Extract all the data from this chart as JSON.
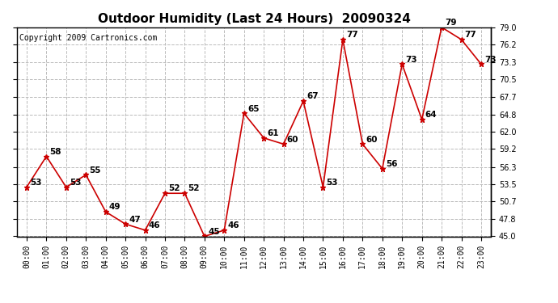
{
  "title": "Outdoor Humidity (Last 24 Hours)  20090324",
  "copyright": "Copyright 2009 Cartronics.com",
  "hours": [
    "00:00",
    "01:00",
    "02:00",
    "03:00",
    "04:00",
    "05:00",
    "06:00",
    "07:00",
    "08:00",
    "09:00",
    "10:00",
    "11:00",
    "12:00",
    "13:00",
    "14:00",
    "15:00",
    "16:00",
    "17:00",
    "18:00",
    "19:00",
    "20:00",
    "21:00",
    "22:00",
    "23:00"
  ],
  "values": [
    53,
    58,
    53,
    55,
    49,
    47,
    46,
    52,
    52,
    45,
    46,
    65,
    61,
    60,
    67,
    53,
    77,
    60,
    56,
    73,
    64,
    79,
    77,
    73
  ],
  "ylim": [
    45.0,
    79.0
  ],
  "yticks": [
    45.0,
    47.8,
    50.7,
    53.5,
    56.3,
    59.2,
    62.0,
    64.8,
    67.7,
    70.5,
    73.3,
    76.2,
    79.0
  ],
  "line_color": "#cc0000",
  "marker_color": "#cc0000",
  "bg_color": "#ffffff",
  "grid_color": "#bbbbbb",
  "title_fontsize": 11,
  "label_fontsize": 7.5,
  "tick_fontsize": 7,
  "copyright_fontsize": 7
}
